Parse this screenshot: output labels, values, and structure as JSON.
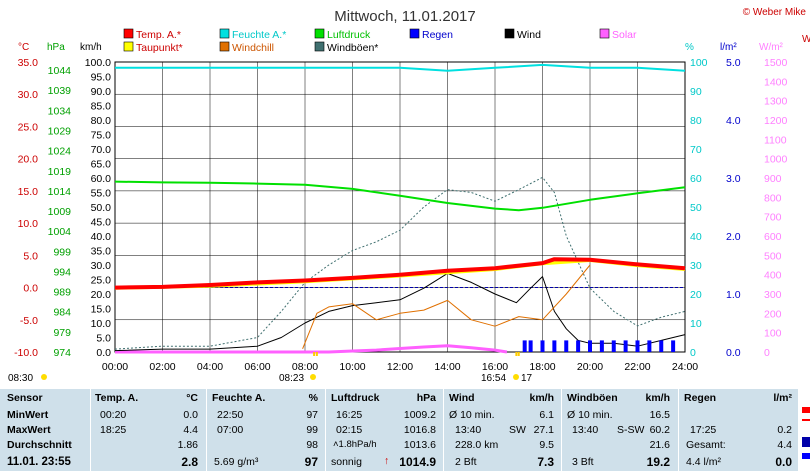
{
  "title": "Mittwoch, 11.01.2017",
  "copyright": "© Weber Mike",
  "colors": {
    "temp": "#ff0000",
    "taupunkt": "#ffff00",
    "feuchte": "#00e0e0",
    "windchill": "#e07000",
    "luftdruck": "#00e000",
    "windboeen": "#407070",
    "regen": "#0000ff",
    "wind": "#000000",
    "solar": "#ff60ff",
    "hpa_axis": "#00c000",
    "wm2_axis": "#ff80ff"
  },
  "legend": [
    {
      "label": "Temp. A.*",
      "color": "#ff0000"
    },
    {
      "label": "Feuchte A.*",
      "color": "#00e0e0"
    },
    {
      "label": "Luftdruck",
      "color": "#00e000"
    },
    {
      "label": "Regen",
      "color": "#0000ff"
    },
    {
      "label": "Wind",
      "color": "#000000"
    },
    {
      "label": "Solar",
      "color": "#ff60ff"
    },
    {
      "label": "Taupunkt*",
      "color": "#ffff00"
    },
    {
      "label": "Windchill",
      "color": "#e07000"
    },
    {
      "label": "Windböen*",
      "color": "#407070"
    }
  ],
  "axis_titles": {
    "temp": "°C",
    "hpa": "hPa",
    "kmh": "km/h",
    "pct": "%",
    "lm2": "l/m²",
    "wm2": "W/m²",
    "w": "W"
  },
  "chart_data": {
    "type": "line",
    "x_ticks": [
      "00:00",
      "02:00",
      "04:00",
      "06:00",
      "08:00",
      "10:00",
      "12:00",
      "14:00",
      "16:00",
      "18:00",
      "20:00",
      "22:00",
      "24:00"
    ],
    "axes": {
      "temp_ticks": [
        "35.0",
        "30.0",
        "25.0",
        "20.0",
        "15.0",
        "10.0",
        "5.0",
        "0.0",
        "-5.0",
        "-10.0"
      ],
      "hpa_ticks": [
        "1044",
        "1039",
        "1034",
        "1029",
        "1024",
        "1019",
        "1014",
        "1009",
        "1004",
        "999",
        "994",
        "989",
        "984",
        "979",
        "974"
      ],
      "kmh_ticks": [
        "100.0",
        "95.0",
        "90.0",
        "85.0",
        "80.0",
        "75.0",
        "70.0",
        "65.0",
        "60.0",
        "55.0",
        "50.0",
        "45.0",
        "40.0",
        "35.0",
        "30.0",
        "25.0",
        "20.0",
        "15.0",
        "10.0",
        "5.0",
        "0.0"
      ],
      "pct_ticks": [
        "100",
        "90",
        "80",
        "70",
        "60",
        "50",
        "40",
        "30",
        "20",
        "10",
        "0"
      ],
      "lm2_ticks": [
        "5.0",
        "4.0",
        "3.0",
        "2.0",
        "1.0",
        "0.0"
      ],
      "wm2_ticks": [
        "1500",
        "1400",
        "1300",
        "1200",
        "1100",
        "1000",
        "900",
        "800",
        "700",
        "600",
        "500",
        "400",
        "300",
        "200",
        "100",
        "0"
      ]
    },
    "series": [
      {
        "name": "Temp. A.*",
        "axis": "temp",
        "x": [
          0,
          2,
          4,
          6,
          8,
          10,
          12,
          14,
          16,
          18,
          18.5,
          20,
          22,
          24
        ],
        "values": [
          0.0,
          0.1,
          0.4,
          0.8,
          1.1,
          1.5,
          2.0,
          2.6,
          3.0,
          3.8,
          4.4,
          4.3,
          3.6,
          3.0
        ]
      },
      {
        "name": "Taupunkt*",
        "axis": "temp",
        "x": [
          0,
          4,
          8,
          12,
          16,
          18,
          20,
          22,
          24
        ],
        "values": [
          -0.1,
          0.2,
          0.9,
          1.8,
          2.8,
          3.7,
          4.2,
          3.4,
          2.8
        ]
      },
      {
        "name": "Feuchte A.*",
        "axis": "pct",
        "x": [
          0,
          2,
          4,
          6,
          8,
          10,
          12,
          14,
          16,
          18,
          20,
          22,
          24
        ],
        "values": [
          98,
          98,
          98,
          98,
          98,
          98,
          98,
          97,
          98,
          99,
          98,
          98,
          97
        ]
      },
      {
        "name": "Luftdruck",
        "axis": "hpa",
        "x": [
          0,
          2,
          4,
          6,
          8,
          10,
          12,
          14,
          16,
          17,
          18,
          20,
          22,
          24
        ],
        "values": [
          1016.3,
          1016.1,
          1016.0,
          1015.8,
          1015.5,
          1014.5,
          1012.8,
          1011.0,
          1009.6,
          1009.2,
          1009.8,
          1011.8,
          1013.4,
          1014.9
        ]
      },
      {
        "name": "Windchill",
        "axis": "temp",
        "x": [
          7.9,
          8.5,
          9,
          10,
          11,
          12,
          13,
          14,
          15,
          16,
          17,
          18,
          19,
          20
        ],
        "values": [
          -9.5,
          -4,
          -3,
          -2.5,
          -5,
          -4,
          -3.5,
          -2,
          -5,
          -6,
          -4.5,
          -5,
          -1,
          3.5
        ]
      },
      {
        "name": "Wind",
        "axis": "kmh",
        "x": [
          0,
          2,
          4,
          6,
          7,
          8,
          9,
          10,
          11,
          12,
          13,
          14,
          15,
          16,
          16.9,
          17.5,
          18,
          18.5,
          19,
          19.5,
          20,
          21,
          22,
          23,
          24
        ],
        "values": [
          0.5,
          1,
          1,
          2,
          5,
          10,
          14,
          16,
          17,
          18,
          22,
          27.1,
          24,
          20,
          17,
          22,
          26,
          14,
          8,
          4,
          3,
          3,
          2,
          4,
          6
        ]
      },
      {
        "name": "Windböen*",
        "axis": "kmh",
        "x": [
          0,
          2,
          4,
          6,
          7,
          8,
          9,
          10,
          11,
          12,
          13,
          14,
          15,
          16,
          17,
          18,
          18.5,
          19,
          20,
          21,
          22,
          23,
          24
        ],
        "values": [
          1,
          2,
          2,
          5,
          14,
          24,
          30,
          35,
          38,
          42,
          50,
          56,
          55,
          52,
          56,
          60.2,
          55,
          40,
          22,
          14,
          9,
          12,
          14
        ]
      },
      {
        "name": "Solar",
        "axis": "wm2",
        "x": [
          0,
          9,
          10,
          11,
          12,
          13,
          14,
          15,
          16,
          16.5
        ],
        "values": [
          0,
          0,
          5,
          10,
          18,
          26,
          32,
          22,
          10,
          0
        ]
      },
      {
        "name": "Regen",
        "axis": "lm2",
        "x": [
          17.25,
          17.5,
          18,
          18.5,
          19,
          19.5,
          20,
          20.5,
          21,
          21.5,
          22,
          22.5,
          23,
          23.5
        ],
        "values": [
          0.2,
          0.2,
          0.2,
          0.2,
          0.2,
          0.2,
          0.2,
          0.2,
          0.2,
          0.2,
          0.2,
          0.2,
          0.2,
          0.2
        ]
      }
    ],
    "markers": [
      {
        "time": "08:30",
        "value": 8.5
      },
      {
        "time": "08:23",
        "value": 8.383
      },
      {
        "time": "16:54",
        "value": 16.9
      },
      {
        "time": "17",
        "value": 17.0
      }
    ]
  },
  "stats": {
    "header": {
      "sensor": "Sensor",
      "temp": "Temp. A.",
      "temp_unit": "°C",
      "feuchte": "Feuchte A.",
      "feuchte_unit": "%",
      "luftdruck": "Luftdruck",
      "luftdruck_unit": "hPa",
      "wind": "Wind",
      "wind_unit": "km/h",
      "boeen": "Windböen",
      "boeen_unit": "km/h",
      "regen": "Regen",
      "regen_unit": "l/m²"
    },
    "rows": [
      {
        "label": "MinWert",
        "t_time": "00:20",
        "t_val": "0.0",
        "f_time": "22:50",
        "f_val": "97",
        "p_time": "16:25",
        "p_val": "1009.2",
        "w_time": "Ø 10 min.",
        "w_val": "6.1",
        "b_time": "Ø 10 min.",
        "b_val": "16.5",
        "r_time": "",
        "r_val": ""
      },
      {
        "label": "MaxWert",
        "t_time": "18:25",
        "t_val": "4.4",
        "f_time": "07:00",
        "f_val": "99",
        "p_time": "02:15",
        "p_val": "1016.8",
        "w_time": "13:40",
        "w_mid": "SW",
        "w_val": "27.1",
        "b_time": "13:40",
        "b_mid": "S-SW",
        "b_val": "60.2",
        "r_time": "17:25",
        "r_val": "0.2"
      },
      {
        "label": "Durchschnitt",
        "t_time": "",
        "t_val": "1.86",
        "f_time": "",
        "f_val": "98",
        "p_time": "˄1.8hPa/h",
        "p_val": "1013.6",
        "w_time": "228.0 km",
        "w_val": "9.5",
        "b_time": "",
        "b_val": "21.6",
        "r_time": "Gesamt:",
        "r_val": "4.4"
      },
      {
        "label": "11.01. 23:55",
        "t_time": "",
        "t_val": "2.8",
        "f_time": "5.69 g/m³",
        "f_val": "97",
        "p_time": "sonnig",
        "p_mid": "↑",
        "p_val": "1014.9",
        "w_time": "2 Bft",
        "w_val": "7.3",
        "b_time": "3 Bft",
        "b_val": "19.2",
        "r_time": "4.4 l/m²",
        "r_val": "0.0"
      }
    ]
  }
}
